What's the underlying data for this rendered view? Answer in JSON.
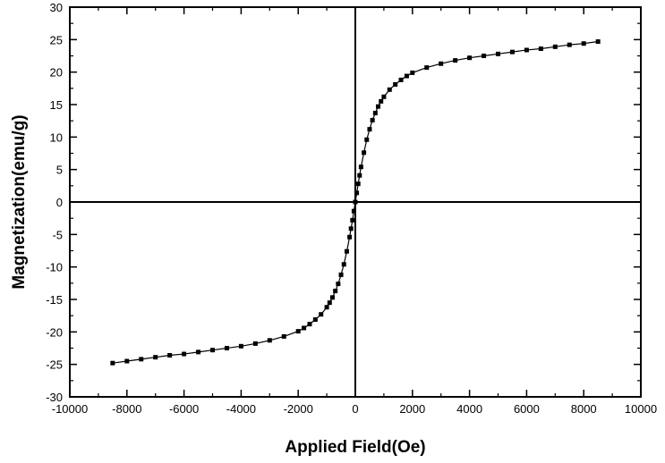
{
  "chart_data": {
    "type": "scatter",
    "title": "",
    "xlabel": "Applied Field(Oe)",
    "ylabel": "Magnetization(emu/g)",
    "xlim": [
      -10000,
      10000
    ],
    "ylim": [
      -30,
      30
    ],
    "x_ticks": [
      -10000,
      -8000,
      -6000,
      -4000,
      -2000,
      0,
      2000,
      4000,
      6000,
      8000,
      10000
    ],
    "y_ticks": [
      -30,
      -25,
      -20,
      -15,
      -10,
      -5,
      0,
      5,
      10,
      15,
      20,
      25,
      30
    ],
    "grid": false,
    "zero_lines": true,
    "legend": "none",
    "series": [
      {
        "marker": "square",
        "line": true,
        "color": "#000000",
        "points": [
          [
            -8500,
            -24.8
          ],
          [
            -8000,
            -24.5
          ],
          [
            -7500,
            -24.2
          ],
          [
            -7000,
            -23.9
          ],
          [
            -6500,
            -23.6
          ],
          [
            -6000,
            -23.4
          ],
          [
            -5500,
            -23.1
          ],
          [
            -5000,
            -22.8
          ],
          [
            -4500,
            -22.5
          ],
          [
            -4000,
            -22.2
          ],
          [
            -3500,
            -21.8
          ],
          [
            -3000,
            -21.3
          ],
          [
            -2500,
            -20.7
          ],
          [
            -2000,
            -19.9
          ],
          [
            -1800,
            -19.4
          ],
          [
            -1600,
            -18.8
          ],
          [
            -1400,
            -18.1
          ],
          [
            -1200,
            -17.3
          ],
          [
            -1000,
            -16.2
          ],
          [
            -900,
            -15.5
          ],
          [
            -800,
            -14.7
          ],
          [
            -700,
            -13.7
          ],
          [
            -600,
            -12.6
          ],
          [
            -500,
            -11.2
          ],
          [
            -400,
            -9.6
          ],
          [
            -300,
            -7.6
          ],
          [
            -200,
            -5.4
          ],
          [
            -150,
            -4.1
          ],
          [
            -100,
            -2.8
          ],
          [
            -50,
            -1.4
          ],
          [
            0,
            0
          ],
          [
            50,
            1.4
          ],
          [
            100,
            2.8
          ],
          [
            150,
            4.1
          ],
          [
            200,
            5.4
          ],
          [
            300,
            7.6
          ],
          [
            400,
            9.6
          ],
          [
            500,
            11.2
          ],
          [
            600,
            12.6
          ],
          [
            700,
            13.7
          ],
          [
            800,
            14.7
          ],
          [
            900,
            15.5
          ],
          [
            1000,
            16.2
          ],
          [
            1200,
            17.3
          ],
          [
            1400,
            18.1
          ],
          [
            1600,
            18.8
          ],
          [
            1800,
            19.4
          ],
          [
            2000,
            19.9
          ],
          [
            2500,
            20.7
          ],
          [
            3000,
            21.3
          ],
          [
            3500,
            21.8
          ],
          [
            4000,
            22.2
          ],
          [
            4500,
            22.5
          ],
          [
            5000,
            22.8
          ],
          [
            5500,
            23.1
          ],
          [
            6000,
            23.4
          ],
          [
            6500,
            23.6
          ],
          [
            7000,
            23.9
          ],
          [
            7500,
            24.2
          ],
          [
            8000,
            24.4
          ],
          [
            8500,
            24.7
          ]
        ]
      }
    ]
  }
}
